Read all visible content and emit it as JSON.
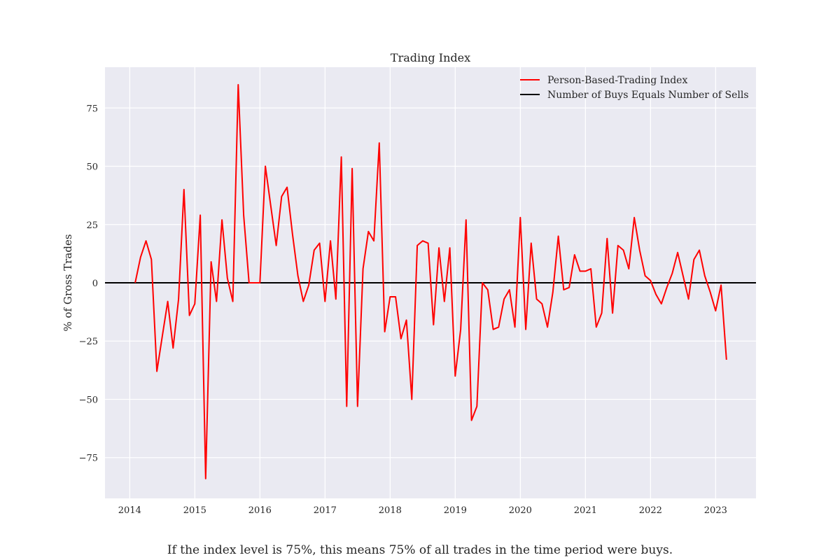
{
  "chart_data": {
    "type": "line",
    "title": "Trading Index",
    "xlabel": "",
    "ylabel": "% of Gross Trades",
    "xlim": [
      2013.62,
      2023.62
    ],
    "ylim": [
      -92.5,
      92.5
    ],
    "x_ticks": [
      2014,
      2015,
      2016,
      2017,
      2018,
      2019,
      2020,
      2021,
      2022,
      2023
    ],
    "y_ticks": [
      -75,
      -50,
      -25,
      0,
      25,
      50,
      75
    ],
    "grid": true,
    "legend_position": "top-right",
    "background": "#EAEAF2",
    "series": [
      {
        "name": "Person-Based-Trading Index",
        "color": "#FF0000",
        "x": [
          "2014-02",
          "2014-03",
          "2014-04",
          "2014-05",
          "2014-06",
          "2014-07",
          "2014-08",
          "2014-09",
          "2014-10",
          "2014-11",
          "2014-12",
          "2015-01",
          "2015-02",
          "2015-03",
          "2015-04",
          "2015-05",
          "2015-06",
          "2015-07",
          "2015-08",
          "2015-09",
          "2015-10",
          "2015-11",
          "2015-12",
          "2016-01",
          "2016-02",
          "2016-03",
          "2016-04",
          "2016-05",
          "2016-06",
          "2016-07",
          "2016-08",
          "2016-09",
          "2016-10",
          "2016-11",
          "2016-12",
          "2017-01",
          "2017-02",
          "2017-03",
          "2017-04",
          "2017-05",
          "2017-06",
          "2017-07",
          "2017-08",
          "2017-09",
          "2017-10",
          "2017-11",
          "2017-12",
          "2018-01",
          "2018-02",
          "2018-03",
          "2018-04",
          "2018-05",
          "2018-06",
          "2018-07",
          "2018-08",
          "2018-09",
          "2018-10",
          "2018-11",
          "2018-12",
          "2019-01",
          "2019-02",
          "2019-03",
          "2019-04",
          "2019-05",
          "2019-06",
          "2019-07",
          "2019-08",
          "2019-09",
          "2019-10",
          "2019-11",
          "2019-12",
          "2020-01",
          "2020-02",
          "2020-03",
          "2020-04",
          "2020-05",
          "2020-06",
          "2020-07",
          "2020-08",
          "2020-09",
          "2020-10",
          "2020-11",
          "2020-12",
          "2021-01",
          "2021-02",
          "2021-03",
          "2021-04",
          "2021-05",
          "2021-06",
          "2021-07",
          "2021-08",
          "2021-09",
          "2021-10",
          "2021-11",
          "2021-12",
          "2022-01",
          "2022-02",
          "2022-03",
          "2022-04",
          "2022-05",
          "2022-06",
          "2022-07",
          "2022-08",
          "2022-09",
          "2022-10",
          "2022-11",
          "2022-12",
          "2023-01",
          "2023-02",
          "2023-03"
        ],
        "y": [
          0,
          11,
          18,
          10,
          -38,
          -23,
          -8,
          -28,
          -7,
          40,
          -14,
          -9,
          29,
          -84,
          9,
          -8,
          27,
          2,
          -8,
          85,
          29,
          0,
          0,
          0,
          50,
          33,
          16,
          37,
          41,
          21,
          3,
          -8,
          -1,
          14,
          17,
          -8,
          18,
          -7,
          54,
          -53,
          49,
          -53,
          6,
          22,
          18,
          60,
          -21,
          -6,
          -6,
          -24,
          -16,
          -50,
          16,
          18,
          17,
          -18,
          15,
          -8,
          15,
          -40,
          -20,
          27,
          -59,
          -53,
          0,
          -3,
          -20,
          -19,
          -7,
          -3,
          -19,
          28,
          -20,
          17,
          -7,
          -9,
          -19,
          -4,
          20,
          -3,
          -2,
          12,
          5,
          5,
          6,
          -19,
          -13,
          19,
          -13,
          16,
          14,
          6,
          28,
          14,
          3,
          1,
          -5,
          -9,
          -2,
          4,
          13,
          3,
          -7,
          10,
          14,
          3,
          -4,
          -12,
          -1,
          -33
        ]
      },
      {
        "name": "Number of Buys Equals Number of Sells",
        "color": "#000000",
        "y_constant": 0
      }
    ]
  },
  "footnote": "If the index level is 75%, this means 75% of all trades in the time period were buys."
}
